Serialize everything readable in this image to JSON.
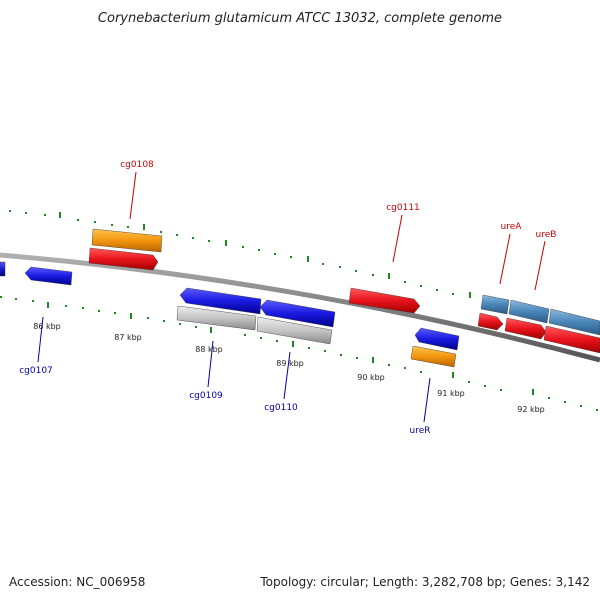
{
  "header": {
    "title": "Corynebacterium glutamicum ATCC 13032, complete genome"
  },
  "footer": {
    "accession": "Accession: NC_006958",
    "summary": "Topology: circular; Length: 3,282,708 bp; Genes: 3,142"
  },
  "colors": {
    "backbone": "#8a8a8a",
    "tick": "#1e8a1e",
    "cds_red": "#e8141c",
    "cds_blue": "#1a1ae0",
    "gene_orange": "#f2960f",
    "gene_gray": "#c4c4c4",
    "gene_steelblue": "#4a86b8",
    "label_red": "#cc0000",
    "label_blue": "#0000aa"
  },
  "scale_labels": [
    "86 kbp",
    "87 kbp",
    "88 kbp",
    "89 kbp",
    "90 kbp",
    "91 kbp",
    "92 kbp"
  ],
  "gene_labels": {
    "top": [
      "cg0108",
      "cg0111",
      "ureA",
      "ureB"
    ],
    "bottom": [
      "cg0107",
      "cg0109",
      "cg0110",
      "ureR"
    ]
  }
}
